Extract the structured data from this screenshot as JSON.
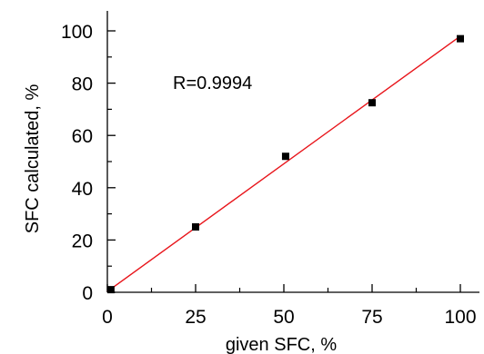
{
  "chart_data": {
    "type": "scatter",
    "title": "",
    "xlabel": "given SFC, %",
    "ylabel": "SFC calculated, %",
    "xlim": [
      0,
      100
    ],
    "ylim": [
      0,
      100
    ],
    "xticks": [
      "0",
      "25",
      "50",
      "75",
      "100"
    ],
    "yticks": [
      "0",
      "20",
      "40",
      "60",
      "80",
      "100"
    ],
    "annotation": "R=0.9994",
    "grid": false,
    "legend": "none",
    "series": [
      {
        "type": "scatter",
        "marker": "square",
        "color": "#000000",
        "x": [
          1,
          25,
          50.5,
          75,
          100
        ],
        "y": [
          1,
          25,
          52,
          72.5,
          97
        ]
      },
      {
        "type": "line",
        "color": "#e8141a",
        "x": [
          0,
          100
        ],
        "y": [
          0.3,
          98
        ]
      }
    ]
  }
}
